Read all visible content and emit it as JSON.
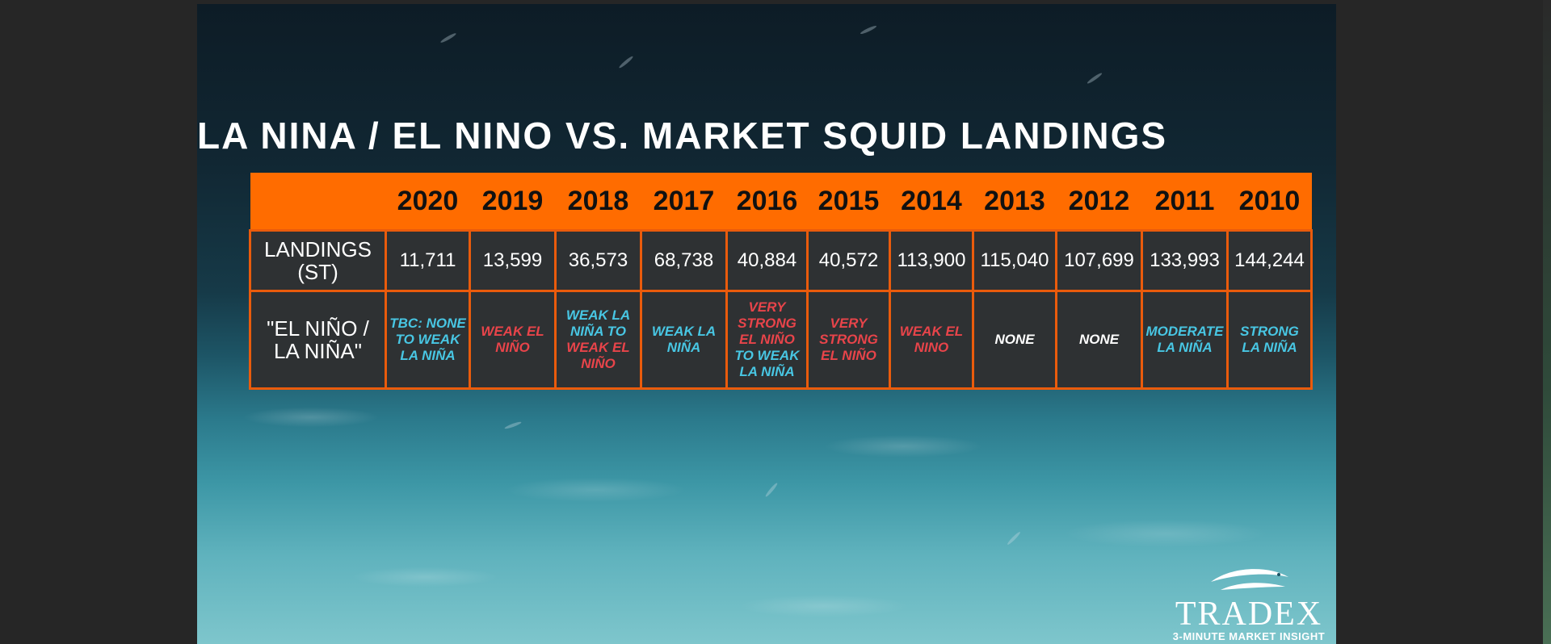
{
  "slide": {
    "title": "LA NINA / EL NINO VS. MARKET SQUID LANDINGS"
  },
  "table": {
    "years": [
      "2020",
      "2019",
      "2018",
      "2017",
      "2016",
      "2015",
      "2014",
      "2013",
      "2012",
      "2011",
      "2010"
    ],
    "row_landings_label": "LANDINGS (ST)",
    "landings": [
      "11,711",
      "13,599",
      "36,573",
      "68,738",
      "40,884",
      "40,572",
      "113,900",
      "115,040",
      "107,699",
      "133,993",
      "144,244"
    ],
    "row_enso_label": "\"EL NIÑO / LA NIÑA\"",
    "enso": [
      {
        "text": "TBC: NONE TO WEAK LA NIÑA",
        "color": "cyan"
      },
      {
        "text": "WEAK EL NIÑO",
        "color": "red"
      },
      {
        "text": "WEAK LA NIÑA TO WEAK EL NIÑO",
        "color": "mixed"
      },
      {
        "text": "WEAK LA NIÑA",
        "color": "cyan"
      },
      {
        "text": "VERY STRONG EL NIÑO TO WEAK LA NIÑA",
        "color": "mixed"
      },
      {
        "text": "VERY STRONG EL NIÑO",
        "color": "red"
      },
      {
        "text": "WEAK EL NINO",
        "color": "red"
      },
      {
        "text": "NONE",
        "color": "white"
      },
      {
        "text": "NONE",
        "color": "white"
      },
      {
        "text": "MODERATE LA NIÑA",
        "color": "cyan"
      },
      {
        "text": "STRONG LA NIÑA",
        "color": "cyan"
      }
    ],
    "enso_parts": {
      "y2018_a": "WEAK LA NIÑA TO",
      "y2018_b": "WEAK EL NIÑO",
      "y2016_a": "VERY STRONG EL NIÑO",
      "y2016_b": "TO WEAK LA NIÑA"
    }
  },
  "logo": {
    "brand": "TRADEX",
    "tagline": "3-MINUTE MARKET INSIGHT",
    "icon": "fish-icon"
  },
  "colors": {
    "header_orange": "#ff6c00",
    "cell_border": "#ea5b0c",
    "cell_bg": "#2e3133",
    "la_nina_cyan": "#48c6e3",
    "el_nino_red": "#e8444a"
  }
}
